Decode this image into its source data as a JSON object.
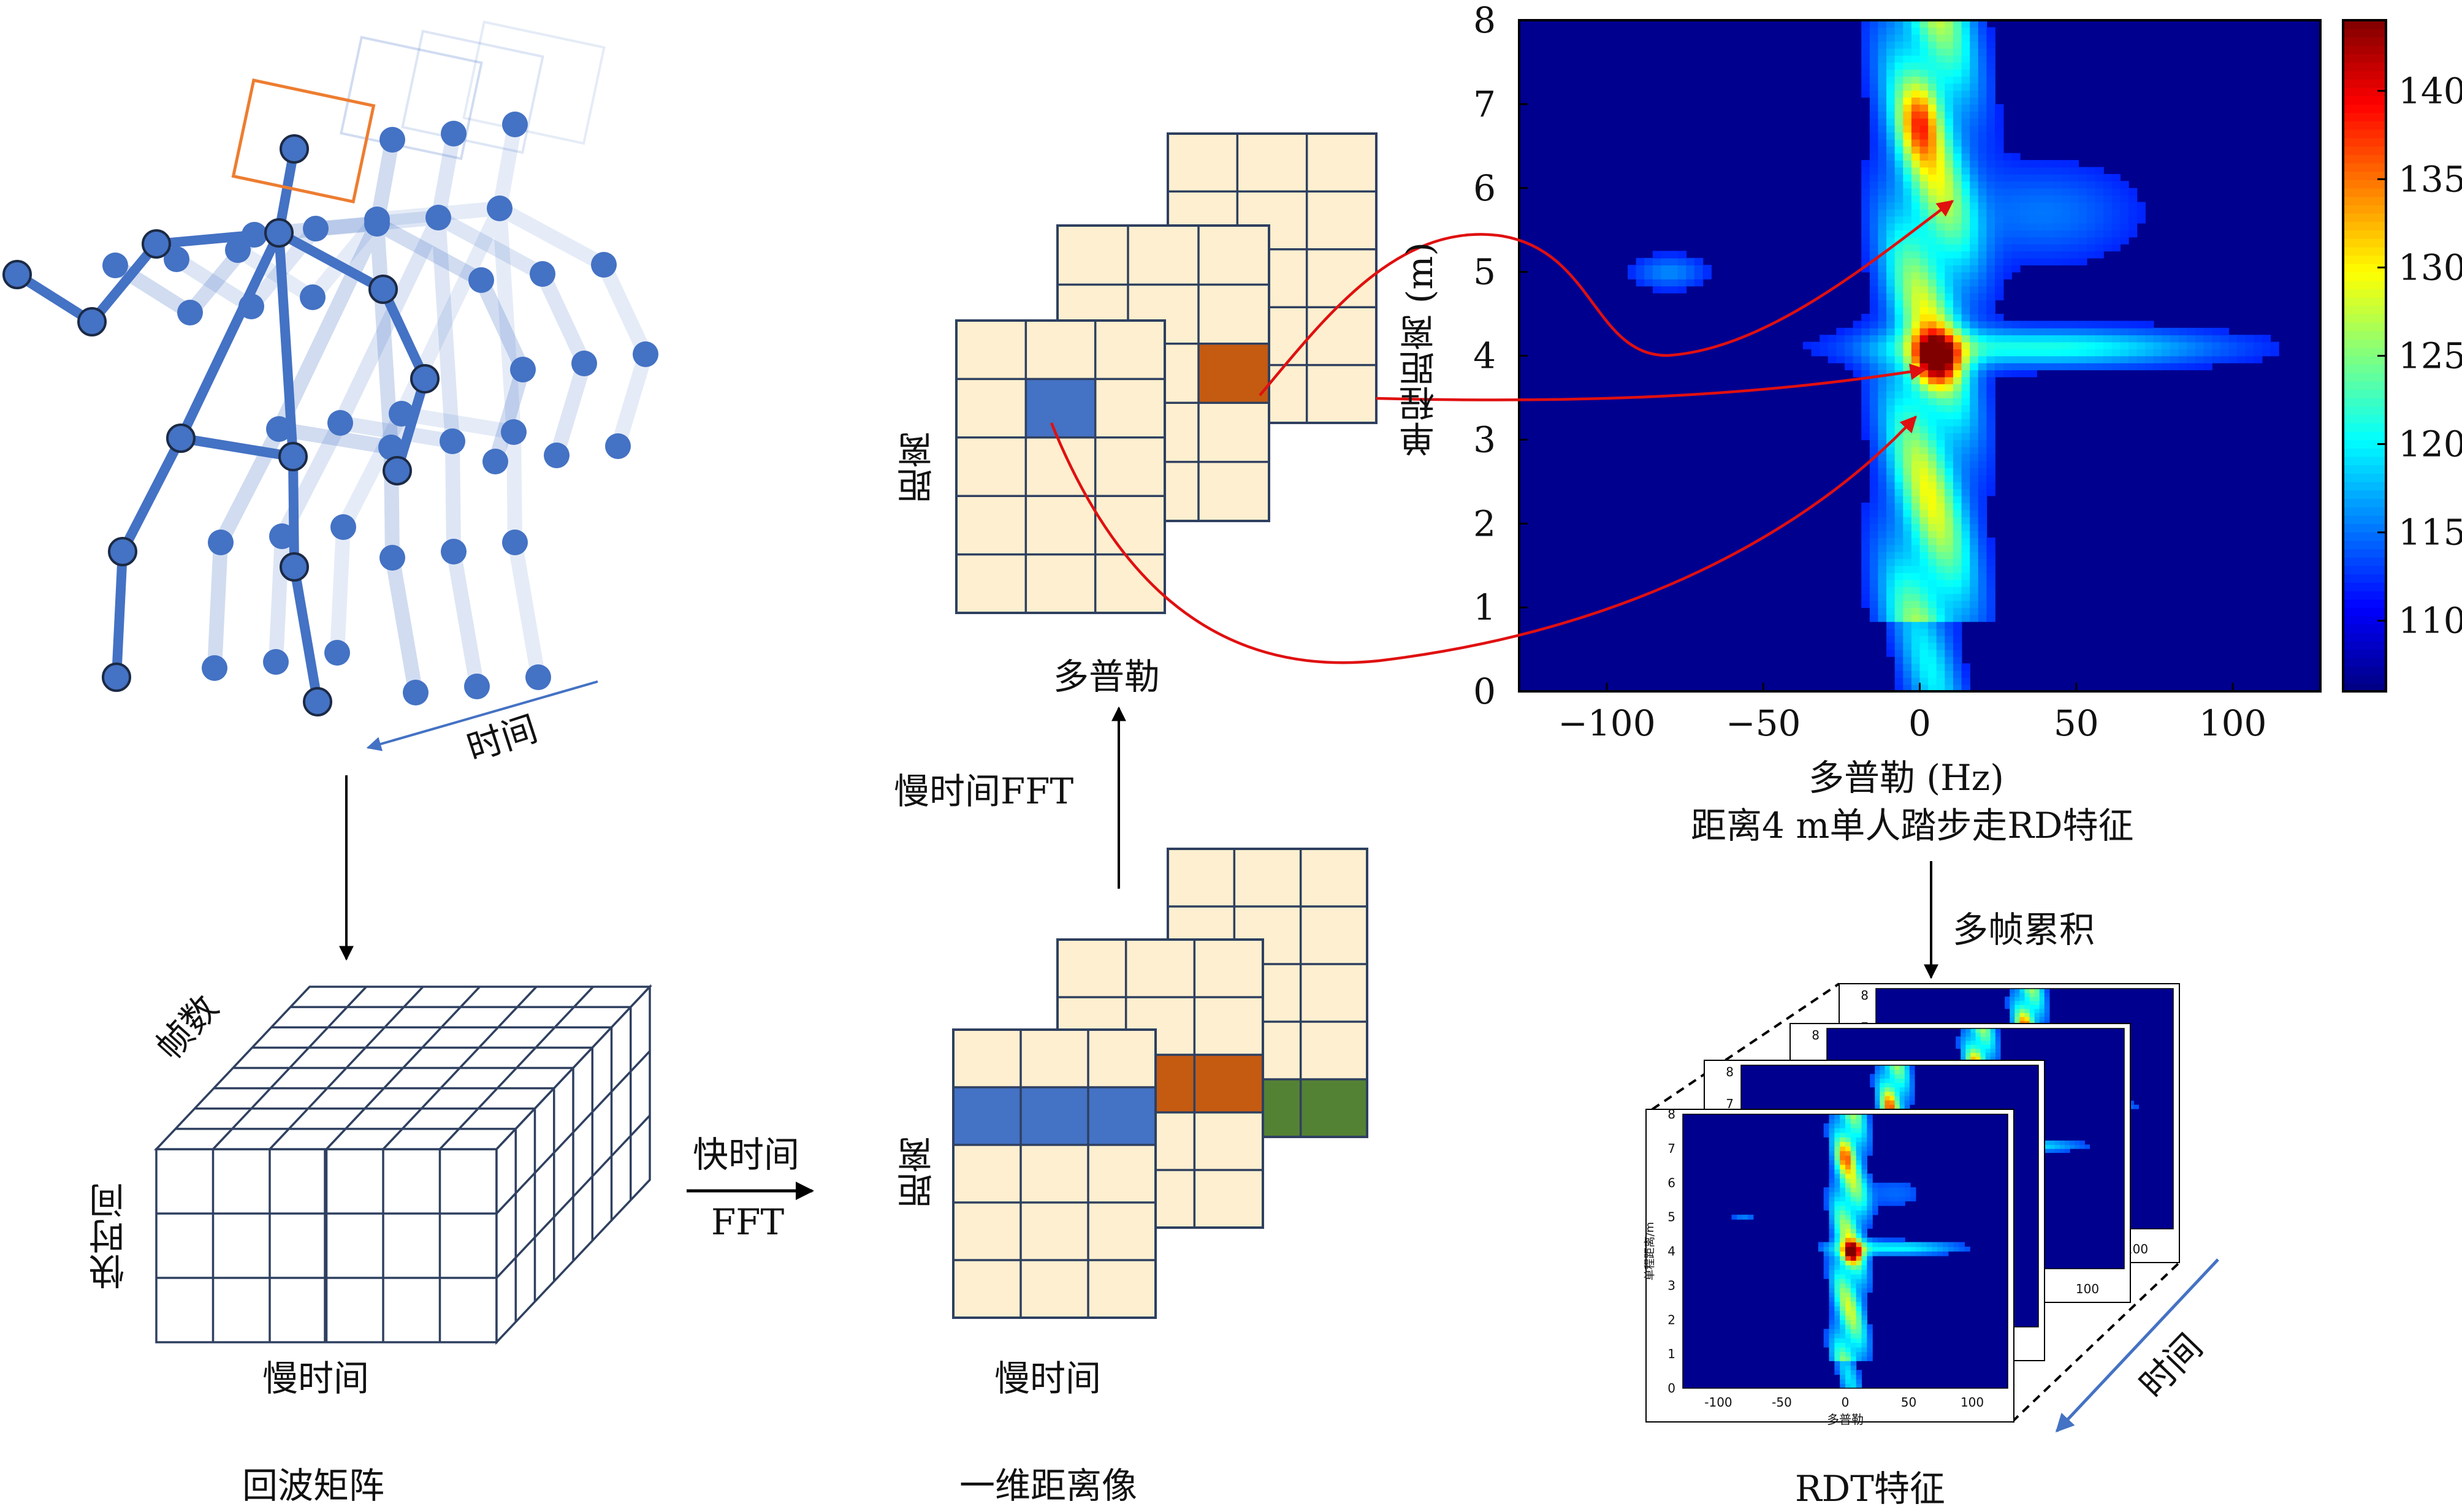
{
  "panels": {
    "echo": {
      "caption": "回波矩阵",
      "axis_frames": "帧数",
      "axis_fast_time": "快时间",
      "axis_slow_time": "慢时间",
      "time_arrow_label": "时间"
    },
    "fft_fast": {
      "line1": "快时间",
      "line2": "FFT"
    },
    "range_profile": {
      "caption": "一维距离像",
      "axis_range": "距离",
      "axis_slow_time": "慢时间"
    },
    "fft_slow": {
      "label": "慢时间FFT"
    },
    "doppler_grid": {
      "axis_range": "距离",
      "axis_doppler": "多普勒"
    },
    "rd_map": {
      "caption": "距离4 m单人踏步走RD特征",
      "xlabel": "多普勒 (Hz)",
      "ylabel": "单程距离 (m)",
      "x_ticks": [
        "−100",
        "−50",
        "0",
        "50",
        "100"
      ],
      "y_ticks": [
        "0",
        "1",
        "2",
        "3",
        "4",
        "5",
        "6",
        "7",
        "8"
      ],
      "colorbar_ticks": [
        "110",
        "115",
        "120",
        "125",
        "130",
        "135",
        "140"
      ]
    },
    "accumulate": {
      "label": "多帧累积"
    },
    "rdt": {
      "caption": "RDT特征",
      "time_label": "时间",
      "mini_xlabel": "多普勒",
      "mini_ylabel": "单程距离/m",
      "mini_x_ticks": [
        "-100",
        "-50",
        "0",
        "50",
        "100"
      ],
      "mini_y_ticks": [
        "0",
        "1",
        "2",
        "3",
        "4",
        "5",
        "6",
        "7",
        "8"
      ]
    }
  },
  "colors": {
    "skeleton": "#4472c4",
    "cell_fill": "#fdefcf",
    "cell_stroke": "#2f4060",
    "highlight_blue": "#4472c4",
    "highlight_orange": "#c55a11",
    "highlight_green": "#548235",
    "arrow_red": "#e01010",
    "box_orange": "#ed7d31"
  }
}
